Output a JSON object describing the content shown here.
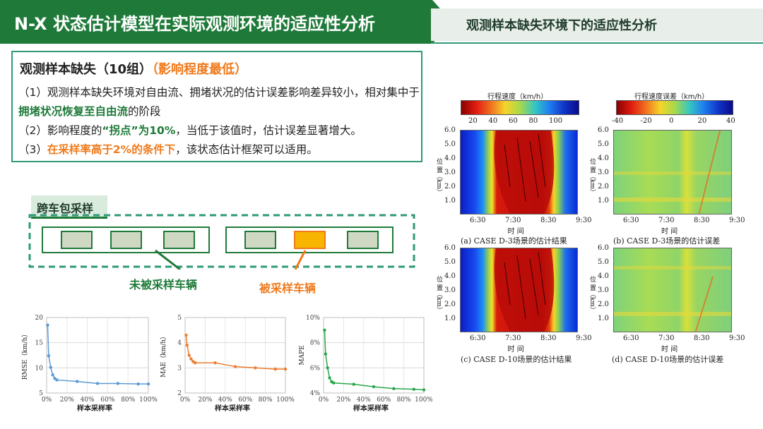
{
  "header": {
    "title": "N-X 状态估计模型在实际观测环境的适应性分析",
    "subtitle": "观测样本缺失环境下的适应性分析"
  },
  "summary": {
    "title": "观测样本缺失（10组）",
    "title_note": "（影响程度最低）",
    "p1_a": "（1）观测样本缺失环境对自由流、拥堵状况的估计误差影响差异较小，相对集中于",
    "p1_b": "拥堵状况恢复至自由流",
    "p1_c": "的阶段",
    "p2_a": "（2）影响程度的",
    "p2_b": "“拐点”为10%",
    "p2_c": "，当低于该值时，估计误差显著增大。",
    "p3_a": "（3）",
    "p3_b": "在采样率高于2%的条件下",
    "p3_c": "，该状态估计框架可以适用。"
  },
  "illustration": {
    "tag": "跨车包采样",
    "unsampled_label": "未被采样车辆",
    "sampled_label": "被采样车辆",
    "colors": {
      "green": "#1f7a3a",
      "vehicle": "#cfd8c2",
      "sampled": "#f7b500",
      "orange": "#f07a1c"
    }
  },
  "line_charts": [
    {
      "type": "line",
      "ylabel": "RMSE（km/h）",
      "xlabel": "样本采样率",
      "y_ticks": [
        "20",
        "15",
        "10",
        "5"
      ],
      "ylim": [
        5,
        20
      ],
      "x_ticks": [
        "0%",
        "20%",
        "40%",
        "60%",
        "80%",
        "100%"
      ],
      "color": "#5b9bd5",
      "x": [
        1,
        2,
        4,
        6,
        8,
        10,
        30,
        50,
        70,
        90,
        100
      ],
      "values": [
        18.5,
        12.4,
        10.1,
        8.6,
        7.9,
        7.6,
        7.3,
        6.9,
        6.9,
        6.8,
        6.8
      ]
    },
    {
      "type": "line",
      "ylabel": "MAE（km/h）",
      "xlabel": "样本采样率",
      "y_ticks": [
        "5",
        "4",
        "3",
        "2"
      ],
      "ylim": [
        2,
        5
      ],
      "x_ticks": [
        "0%",
        "20%",
        "40%",
        "60%",
        "80%",
        "100%"
      ],
      "color": "#ed7d31",
      "x": [
        1,
        2,
        4,
        6,
        8,
        10,
        30,
        50,
        70,
        90,
        100
      ],
      "values": [
        4.3,
        3.9,
        3.5,
        3.35,
        3.25,
        3.2,
        3.2,
        3.05,
        3.0,
        2.95,
        2.95
      ]
    },
    {
      "type": "line",
      "ylabel": "MAPE",
      "xlabel": "样本采样率",
      "y_ticks": [
        "10%",
        "8%",
        "6%",
        "4%"
      ],
      "ylim": [
        4,
        10
      ],
      "x_ticks": [
        "0%",
        "20%",
        "40%",
        "60%",
        "80%",
        "100%"
      ],
      "color": "#2aa84a",
      "x": [
        1,
        2,
        4,
        6,
        8,
        10,
        30,
        50,
        70,
        90,
        100
      ],
      "values": [
        9.0,
        7.1,
        6.0,
        5.2,
        4.9,
        4.8,
        4.7,
        4.5,
        4.35,
        4.3,
        4.25
      ]
    }
  ],
  "heatmaps": {
    "speed_colorbar": {
      "title": "行程速度（km/h）",
      "ticks": [
        "20",
        "40",
        "60",
        "80",
        "100"
      ]
    },
    "error_colorbar": {
      "title": "行程速度误差（km/h）",
      "ticks": [
        "-40",
        "-20",
        "0",
        "20",
        "40"
      ]
    },
    "y_axis_label": "位 置（km）",
    "y_ticks": [
      "6.0",
      "5.0",
      "4.0",
      "3.0",
      "2.0",
      "1.0"
    ],
    "x_axis_label": "时 间",
    "x_ticks": [
      "6:30",
      "7:30",
      "8:30",
      "9:30"
    ],
    "captions": {
      "a": "(a) CASE D-3场景的估计结果",
      "b": "(b) CASE D-3场景的估计误差",
      "c": "(c) CASE D-10场景的估计结果",
      "d": "(d) CASE D-10场景的估计误差"
    }
  }
}
